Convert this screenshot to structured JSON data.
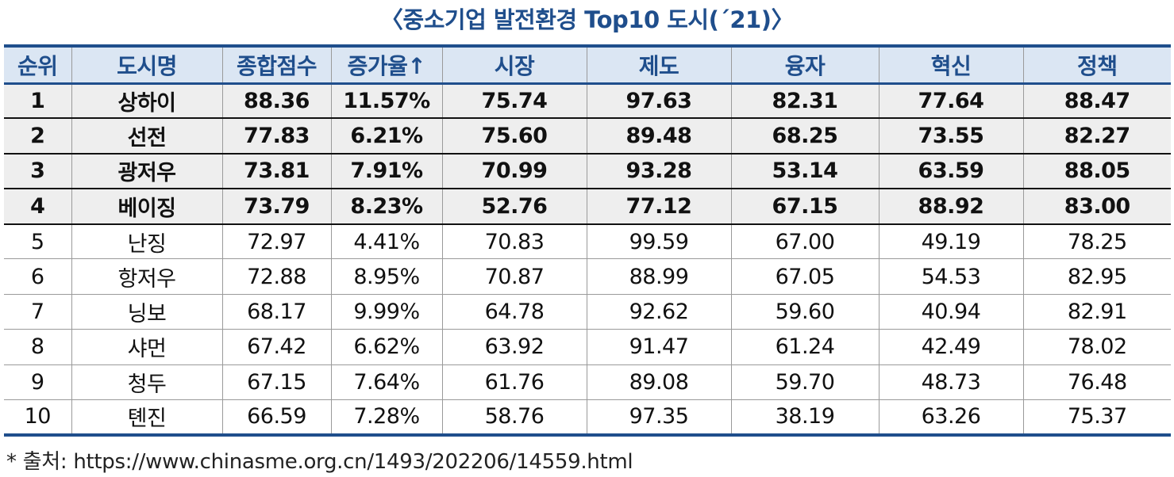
{
  "title": "〈중소기업 발전환경 Top10 도시(´21)〉",
  "headers": [
    "순위",
    "도시명",
    "종합점수",
    "증가율↑",
    "시장",
    "제도",
    "융자",
    "혁신",
    "정책"
  ],
  "rows": [
    [
      "1",
      "상하이",
      "88.36",
      "11.57%",
      "75.74",
      "97.63",
      "82.31",
      "77.64",
      "88.47"
    ],
    [
      "2",
      "선전",
      "77.83",
      "6.21%",
      "75.60",
      "89.48",
      "68.25",
      "73.55",
      "82.27"
    ],
    [
      "3",
      "광저우",
      "73.81",
      "7.91%",
      "70.99",
      "93.28",
      "53.14",
      "63.59",
      "88.05"
    ],
    [
      "4",
      "베이징",
      "73.79",
      "8.23%",
      "52.76",
      "77.12",
      "67.15",
      "88.92",
      "83.00"
    ],
    [
      "5",
      "난징",
      "72.97",
      "4.41%",
      "70.83",
      "99.59",
      "67.00",
      "49.19",
      "78.25"
    ],
    [
      "6",
      "항저우",
      "72.88",
      "8.95%",
      "70.87",
      "88.99",
      "67.05",
      "54.53",
      "82.95"
    ],
    [
      "7",
      "닝보",
      "68.17",
      "9.99%",
      "64.78",
      "92.62",
      "59.60",
      "40.94",
      "82.91"
    ],
    [
      "8",
      "샤먼",
      "67.42",
      "6.62%",
      "63.92",
      "91.47",
      "61.24",
      "42.49",
      "78.02"
    ],
    [
      "9",
      "청두",
      "67.15",
      "7.64%",
      "61.76",
      "89.08",
      "59.70",
      "48.73",
      "76.48"
    ],
    [
      "10",
      "톈진",
      "66.59",
      "7.28%",
      "58.76",
      "97.35",
      "38.19",
      "63.26",
      "75.37"
    ]
  ],
  "source": "* 출처: https://www.chinasme.org.cn/1493/202206/14559.html",
  "colors": {
    "accent": "#1f4e8c",
    "header_bg": "#dbe6f3",
    "highlight_bg": "#eeeeee"
  }
}
